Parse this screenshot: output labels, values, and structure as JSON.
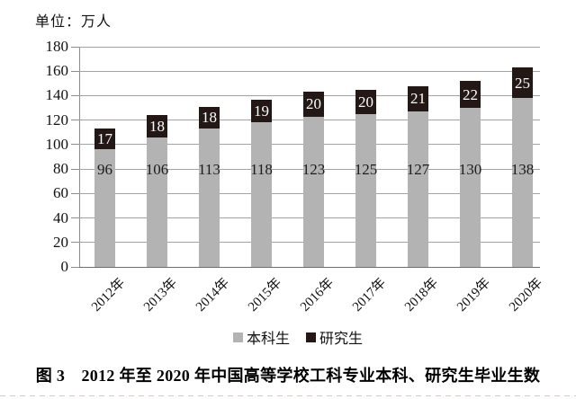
{
  "unit_label": "单位：万人",
  "chart_data": {
    "type": "bar",
    "stacked": true,
    "title": "",
    "unit": "万人",
    "categories": [
      "2012年",
      "2013年",
      "2014年",
      "2015年",
      "2016年",
      "2017年",
      "2018年",
      "2019年",
      "2020年"
    ],
    "series": [
      {
        "name": "本科生",
        "color": "#b3b3b3",
        "label_color": "#1c1c1c",
        "values": [
          96,
          106,
          113,
          118,
          123,
          125,
          127,
          130,
          138
        ]
      },
      {
        "name": "研究生",
        "color": "#231815",
        "label_color": "#ffffff",
        "values": [
          17,
          18,
          18,
          19,
          20,
          20,
          21,
          22,
          25
        ]
      }
    ],
    "ylim": [
      0,
      180
    ],
    "yticks": [
      0,
      20,
      40,
      60,
      80,
      100,
      120,
      140,
      160,
      180
    ],
    "grid": true,
    "legend_position": "bottom"
  },
  "legend": {
    "items": [
      {
        "label": "本科生",
        "color": "#b3b3b3"
      },
      {
        "label": "研究生",
        "color": "#231815"
      }
    ]
  },
  "caption": "图 3　2012 年至 2020 年中国高等学校工科专业本科、研究生毕业生数"
}
